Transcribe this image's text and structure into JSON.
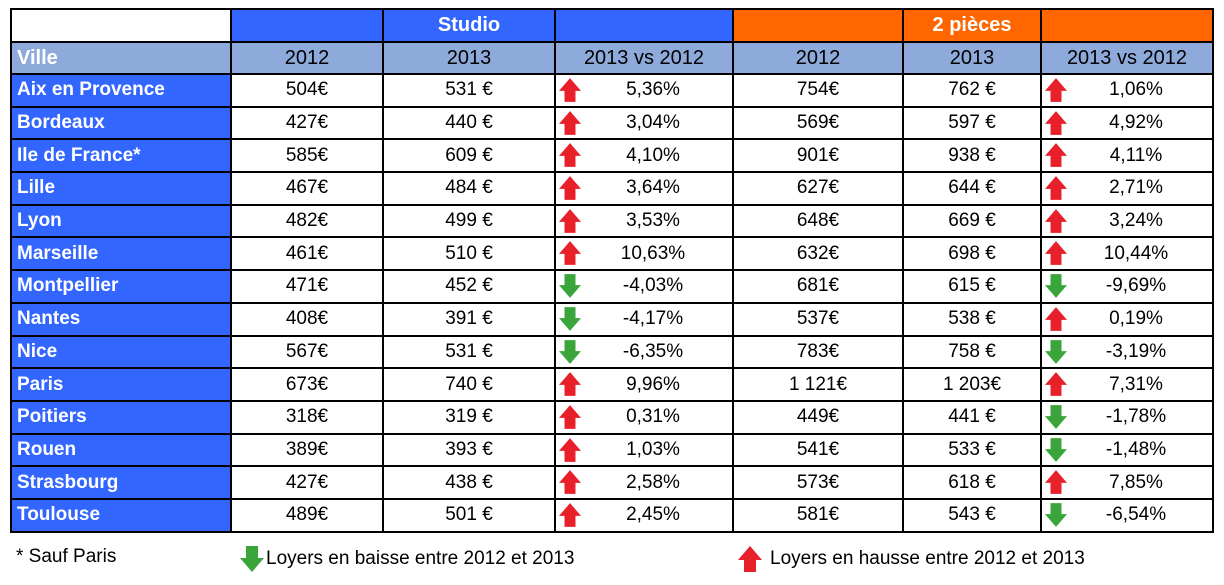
{
  "header": {
    "groups": [
      "",
      "Studio",
      "2 pièces"
    ],
    "columns": [
      "Ville",
      "2012",
      "2013",
      "2013 vs 2012",
      "2012",
      "2013",
      "2013 vs 2012"
    ]
  },
  "rows": [
    {
      "city": "Aix en Provence",
      "s2012": "504€",
      "s2013": "531 €",
      "sdir": "up",
      "spct": "5,36%",
      "p2012": "754€",
      "p2013": "762 €",
      "pdir": "up",
      "ppct": "1,06%"
    },
    {
      "city": "Bordeaux",
      "s2012": "427€",
      "s2013": "440 €",
      "sdir": "up",
      "spct": "3,04%",
      "p2012": "569€",
      "p2013": "597 €",
      "pdir": "up",
      "ppct": "4,92%"
    },
    {
      "city": "Ile de France*",
      "s2012": "585€",
      "s2013": "609 €",
      "sdir": "up",
      "spct": "4,10%",
      "p2012": "901€",
      "p2013": "938 €",
      "pdir": "up",
      "ppct": "4,11%"
    },
    {
      "city": "Lille",
      "s2012": "467€",
      "s2013": "484 €",
      "sdir": "up",
      "spct": "3,64%",
      "p2012": "627€",
      "p2013": "644 €",
      "pdir": "up",
      "ppct": "2,71%"
    },
    {
      "city": "Lyon",
      "s2012": "482€",
      "s2013": "499 €",
      "sdir": "up",
      "spct": "3,53%",
      "p2012": "648€",
      "p2013": "669 €",
      "pdir": "up",
      "ppct": "3,24%"
    },
    {
      "city": "Marseille",
      "s2012": "461€",
      "s2013": "510 €",
      "sdir": "up",
      "spct": "10,63%",
      "p2012": "632€",
      "p2013": "698 €",
      "pdir": "up",
      "ppct": "10,44%"
    },
    {
      "city": "Montpellier",
      "s2012": "471€",
      "s2013": "452 €",
      "sdir": "down",
      "spct": "-4,03%",
      "p2012": "681€",
      "p2013": "615 €",
      "pdir": "down",
      "ppct": "-9,69%"
    },
    {
      "city": "Nantes",
      "s2012": "408€",
      "s2013": "391 €",
      "sdir": "down",
      "spct": "-4,17%",
      "p2012": "537€",
      "p2013": "538 €",
      "pdir": "up",
      "ppct": "0,19%"
    },
    {
      "city": "Nice",
      "s2012": "567€",
      "s2013": "531 €",
      "sdir": "down",
      "spct": "-6,35%",
      "p2012": "783€",
      "p2013": "758 €",
      "pdir": "down",
      "ppct": "-3,19%"
    },
    {
      "city": "Paris",
      "s2012": "673€",
      "s2013": "740 €",
      "sdir": "up",
      "spct": "9,96%",
      "p2012": "1 121€",
      "p2013": "1 203€",
      "pdir": "up",
      "ppct": "7,31%"
    },
    {
      "city": "Poitiers",
      "s2012": "318€",
      "s2013": "319 €",
      "sdir": "up",
      "spct": "0,31%",
      "p2012": "449€",
      "p2013": "441 €",
      "pdir": "down",
      "ppct": "-1,78%"
    },
    {
      "city": "Rouen",
      "s2012": "389€",
      "s2013": "393 €",
      "sdir": "up",
      "spct": "1,03%",
      "p2012": "541€",
      "p2013": "533 €",
      "pdir": "down",
      "ppct": "-1,48%"
    },
    {
      "city": "Strasbourg",
      "s2012": "427€",
      "s2013": "438 €",
      "sdir": "up",
      "spct": "2,58%",
      "p2012": "573€",
      "p2013": "618 €",
      "pdir": "up",
      "ppct": "7,85%"
    },
    {
      "city": "Toulouse",
      "s2012": "489€",
      "s2013": "501 €",
      "sdir": "up",
      "spct": "2,45%",
      "p2012": "581€",
      "p2013": "543 €",
      "pdir": "down",
      "ppct": "-6,54%"
    }
  ],
  "legend": {
    "footnote": "* Sauf Paris",
    "down_label": "Loyers en baisse entre 2012 et 2013",
    "up_label": "Loyers en hausse entre 2012 et 2013"
  },
  "colors": {
    "studio_header": "#3366ff",
    "two_rooms_header": "#ff6600",
    "subheader": "#8eaadb",
    "city_cell": "#3366ff",
    "arrow_up": "#e8202a",
    "arrow_down": "#3aa53a"
  },
  "icons": {
    "up": "red-up-arrow-icon",
    "down": "green-down-arrow-icon"
  }
}
